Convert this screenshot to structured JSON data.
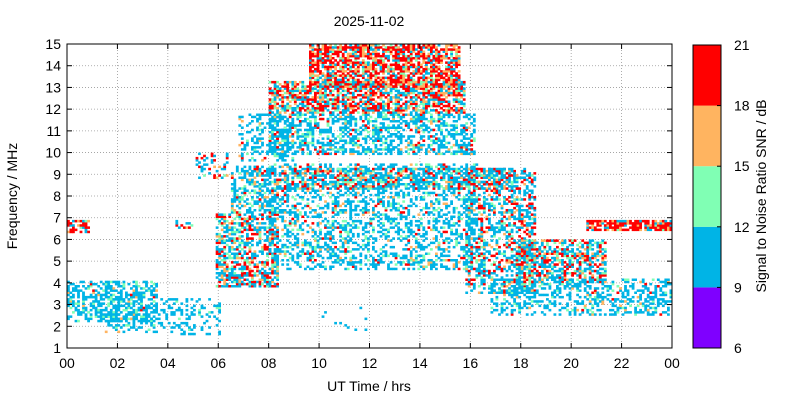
{
  "chart_data": {
    "type": "heatmap",
    "title": "2025-11-02",
    "xlabel": "UT Time / hrs",
    "ylabel": "Frequency / MHz",
    "xlim": [
      0,
      24
    ],
    "ylim": [
      1,
      15
    ],
    "x_ticks": [
      "00",
      "02",
      "04",
      "06",
      "08",
      "10",
      "12",
      "14",
      "16",
      "18",
      "20",
      "22",
      "00"
    ],
    "y_ticks": [
      "1",
      "2",
      "3",
      "4",
      "5",
      "6",
      "7",
      "8",
      "9",
      "10",
      "11",
      "12",
      "13",
      "14",
      "15"
    ],
    "grid": true,
    "colorbar": {
      "label": "Signal to Noise Ratio SNR / dB",
      "ticks": [
        "6",
        "9",
        "12",
        "15",
        "18",
        "21"
      ],
      "bins": [
        {
          "min": 6,
          "max": 9,
          "color": "#7f00ff"
        },
        {
          "min": 9,
          "max": 12,
          "color": "#00b4e6"
        },
        {
          "min": 12,
          "max": 15,
          "color": "#80ffb4"
        },
        {
          "min": 15,
          "max": 18,
          "color": "#ffb460"
        },
        {
          "min": 18,
          "max": 21,
          "color": "#ff0000"
        }
      ]
    },
    "regions": [
      {
        "t0": 0.0,
        "t1": 0.9,
        "f0": 6.3,
        "f1": 6.9,
        "density": 0.6,
        "dist": [
          0,
          0.35,
          0.05,
          0.1,
          0.5
        ]
      },
      {
        "t0": 0.0,
        "t1": 3.6,
        "f0": 2.2,
        "f1": 4.1,
        "density": 0.5,
        "dist": [
          0,
          0.8,
          0.15,
          0.03,
          0.02
        ]
      },
      {
        "t0": 1.5,
        "t1": 3.6,
        "f0": 1.7,
        "f1": 2.6,
        "density": 0.35,
        "dist": [
          0,
          0.85,
          0.1,
          0.05,
          0
        ]
      },
      {
        "t0": 3.6,
        "t1": 6.1,
        "f0": 1.6,
        "f1": 3.3,
        "density": 0.25,
        "dist": [
          0,
          0.9,
          0.1,
          0,
          0
        ]
      },
      {
        "t0": 4.3,
        "t1": 5.1,
        "f0": 6.5,
        "f1": 6.9,
        "density": 0.4,
        "dist": [
          0,
          0.5,
          0.2,
          0.1,
          0.2
        ]
      },
      {
        "t0": 5.1,
        "t1": 6.4,
        "f0": 8.8,
        "f1": 10.0,
        "density": 0.3,
        "dist": [
          0,
          0.4,
          0.1,
          0.1,
          0.4
        ]
      },
      {
        "t0": 5.9,
        "t1": 8.4,
        "f0": 3.8,
        "f1": 7.2,
        "density": 0.6,
        "dist": [
          0,
          0.5,
          0.12,
          0.13,
          0.25
        ]
      },
      {
        "t0": 6.5,
        "t1": 8.4,
        "f0": 7.2,
        "f1": 9.4,
        "density": 0.5,
        "dist": [
          0,
          0.7,
          0.15,
          0.07,
          0.08
        ]
      },
      {
        "t0": 6.8,
        "t1": 9.0,
        "f0": 9.6,
        "f1": 11.8,
        "density": 0.35,
        "dist": [
          0,
          0.8,
          0.1,
          0.05,
          0.05
        ]
      },
      {
        "t0": 8.0,
        "t1": 16.3,
        "f0": 4.6,
        "f1": 9.5,
        "density": 0.4,
        "dist": [
          0,
          0.75,
          0.13,
          0.06,
          0.06
        ]
      },
      {
        "t0": 8.5,
        "t1": 17.9,
        "f0": 8.3,
        "f1": 9.3,
        "density": 0.55,
        "dist": [
          0,
          0.5,
          0.15,
          0.1,
          0.25
        ]
      },
      {
        "t0": 8.0,
        "t1": 16.2,
        "f0": 9.9,
        "f1": 11.8,
        "density": 0.5,
        "dist": [
          0,
          0.75,
          0.15,
          0.05,
          0.05
        ]
      },
      {
        "t0": 8.0,
        "t1": 15.8,
        "f0": 11.8,
        "f1": 13.3,
        "density": 0.7,
        "dist": [
          0,
          0.3,
          0.1,
          0.2,
          0.4
        ]
      },
      {
        "t0": 9.6,
        "t1": 15.6,
        "f0": 13.0,
        "f1": 15.0,
        "density": 0.75,
        "dist": [
          0,
          0.18,
          0.07,
          0.25,
          0.5
        ]
      },
      {
        "t0": 15.8,
        "t1": 18.6,
        "f0": 3.5,
        "f1": 9.3,
        "density": 0.45,
        "dist": [
          0,
          0.6,
          0.1,
          0.08,
          0.22
        ]
      },
      {
        "t0": 17.8,
        "t1": 21.4,
        "f0": 4.0,
        "f1": 6.0,
        "density": 0.65,
        "dist": [
          0,
          0.45,
          0.12,
          0.13,
          0.3
        ]
      },
      {
        "t0": 16.8,
        "t1": 24.0,
        "f0": 2.5,
        "f1": 4.2,
        "density": 0.4,
        "dist": [
          0,
          0.8,
          0.12,
          0.05,
          0.03
        ]
      },
      {
        "t0": 20.6,
        "t1": 24.0,
        "f0": 6.4,
        "f1": 6.9,
        "density": 0.8,
        "dist": [
          0,
          0.15,
          0.05,
          0.2,
          0.6
        ]
      },
      {
        "t0": 10.0,
        "t1": 12.0,
        "f0": 1.8,
        "f1": 3.0,
        "density": 0.04,
        "dist": [
          0,
          1,
          0,
          0,
          0
        ]
      }
    ]
  }
}
